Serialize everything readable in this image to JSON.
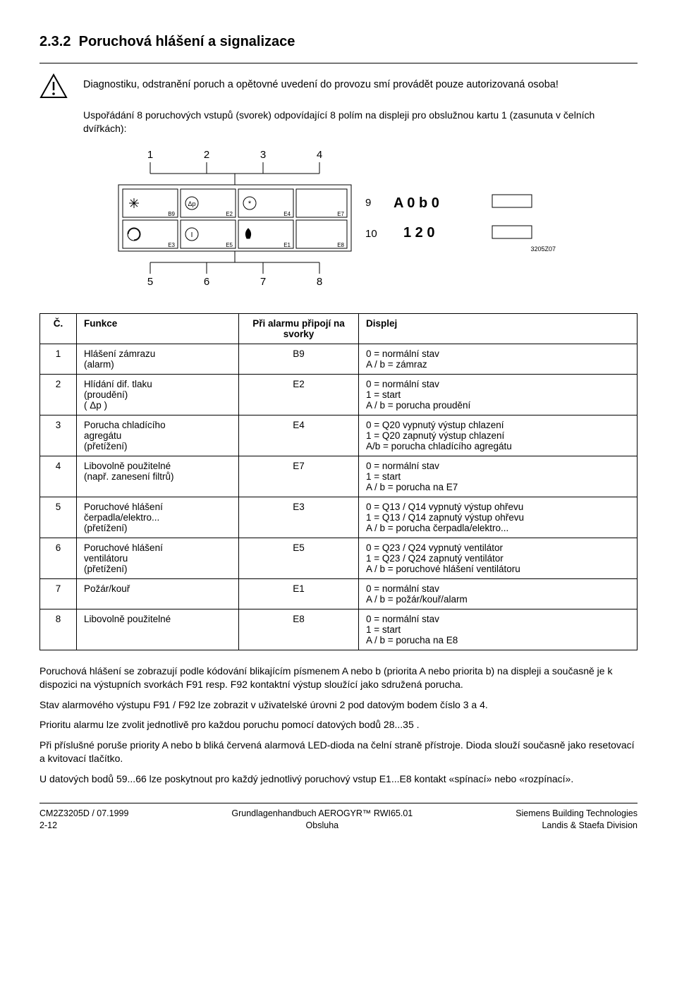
{
  "section": {
    "number": "2.3.2",
    "title": "Poruchová hlášení a signalizace"
  },
  "warning_text": "Diagnostiku, odstranění poruch a opětovné uvedení do provozu smí provádět pouze autorizovaná osoba!",
  "intro_text": "Uspořádání 8 poruchových vstupů (svorek) odpovídající 8 polím na displeji pro obslužnou kartu 1 (zasunuta v čelních dvířkách):",
  "diagram": {
    "top_labels": [
      "1",
      "2",
      "3",
      "4"
    ],
    "bottom_labels": [
      "5",
      "6",
      "7",
      "8"
    ],
    "right_labels": [
      "9",
      "10"
    ],
    "cell_codes": [
      "B9",
      "E2",
      "E4",
      "E7",
      "E3",
      "E5",
      "E1",
      "E8"
    ],
    "display_line1": "A 0 b 0",
    "display_line2": "1 2 0",
    "figure_code": "3205Z07",
    "colors": {
      "stroke": "#000000",
      "fill": "#ffffff"
    }
  },
  "table": {
    "headers": {
      "c": "Č.",
      "func": "Funkce",
      "term": "Při alarmu připojí na svorky",
      "disp": "Displej"
    },
    "rows": [
      {
        "c": "1",
        "func": "Hlášení zámrazu\n(alarm)",
        "term": "B9",
        "disp": "0 = normální stav\nA / b = zámraz"
      },
      {
        "c": "2",
        "func": "Hlídání dif. tlaku\n(proudění)\n( Δp )",
        "term": "E2",
        "disp": "0 = normální stav\n1 = start\nA / b = porucha proudění"
      },
      {
        "c": "3",
        "func": "Porucha chladícího\nagregátu\n(přetížení)",
        "term": "E4",
        "disp": "0 = Q20 vypnutý výstup chlazení\n1 = Q20 zapnutý výstup chlazení\nA/b = porucha chladícího agregátu"
      },
      {
        "c": "4",
        "func": "Libovolně použitelné\n(např. zanesení filtrů)",
        "term": "E7",
        "disp": "0 = normální stav\n1 = start\nA / b = porucha na E7"
      },
      {
        "c": "5",
        "func": "Poruchové hlášení\nčerpadla/elektro...\n(přetížení)",
        "term": "E3",
        "disp": "0 = Q13 / Q14 vypnutý výstup ohřevu\n1 = Q13 / Q14 zapnutý výstup ohřevu\nA / b = porucha čerpadla/elektro..."
      },
      {
        "c": "6",
        "func": "Poruchové hlášení\nventilátoru\n(přetížení)",
        "term": "E5",
        "disp": "0 = Q23 / Q24 vypnutý ventilátor\n1 = Q23 / Q24 zapnutý ventilátor\nA / b = poruchové hlášení ventilátoru"
      },
      {
        "c": "7",
        "func": "Požár/kouř",
        "term": "E1",
        "disp": "0 = normální stav\nA / b = požár/kouř/alarm"
      },
      {
        "c": "8",
        "func": "Libovolně použitelné",
        "term": "E8",
        "disp": "0 = normální stav\n1 = start\nA / b = porucha na E8"
      }
    ]
  },
  "para1": "Poruchová hlášení se zobrazují podle kódování blikajícím písmenem A nebo b (priorita A nebo priorita b) na displeji a současně je k dispozici na výstupních svorkách F91 resp. F92 kontaktní výstup sloužící jako sdružená porucha.",
  "para2": "Stav alarmového výstupu F91 / F92 lze zobrazit v uživatelské úrovni 2 pod datovým bodem číslo 3 a 4.",
  "para3": "Prioritu alarmu lze zvolit jednotlivě pro každou poruchu pomocí datových bodů 28...35 .",
  "para4": "Při příslušné poruše priority A nebo b bliká červená alarmová LED-dioda na čelní straně přístroje. Dioda slouží současně jako resetovací a kvitovací tlačítko.",
  "para5": "U datových bodů 59...66 lze poskytnout pro každý jednotlivý poruchový vstup E1...E8 kontakt «spínací» nebo «rozpínací».",
  "footer": {
    "l1": "CM2Z3205D / 07.1999",
    "l2": "2-12",
    "c1": "Grundlagenhandbuch AEROGYR™ RWI65.01",
    "c2": "Obsluha",
    "r1": "Siemens Building Technologies",
    "r2": "Landis & Staefa Division"
  }
}
